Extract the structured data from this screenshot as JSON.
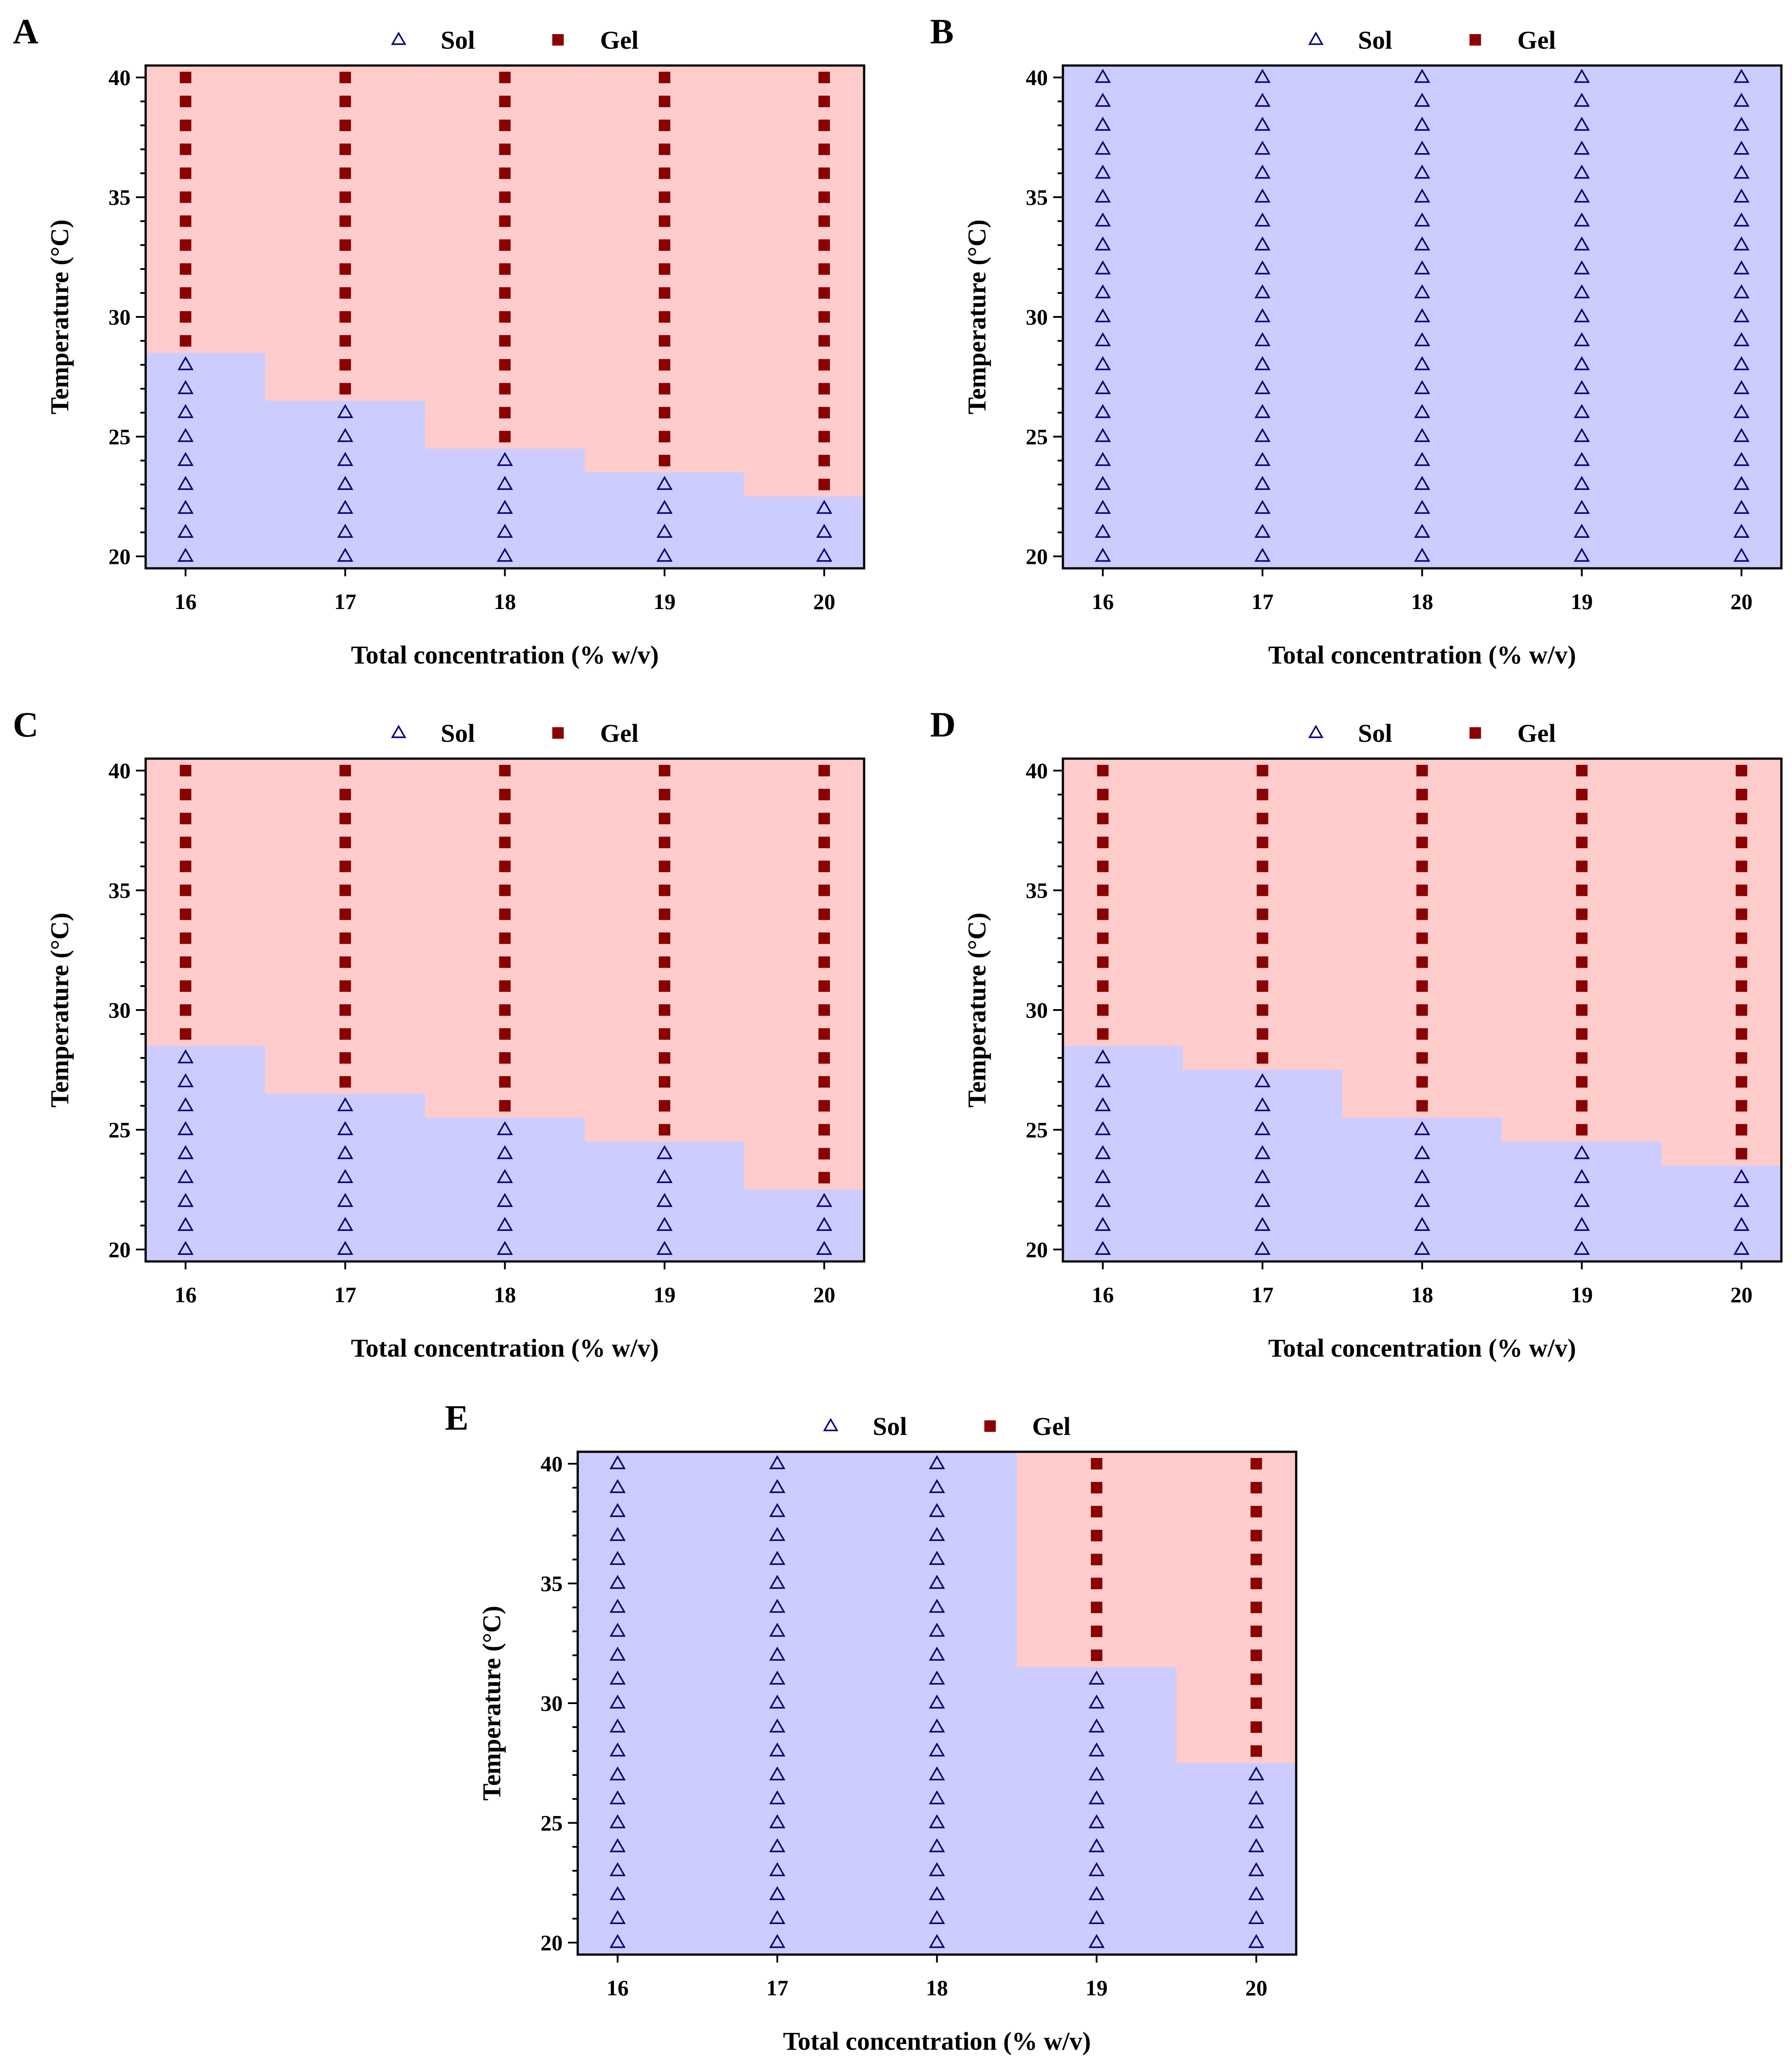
{
  "colors": {
    "sol_region": "#ccccfe",
    "gel_region": "#ffcccc",
    "sol_marker": "#000080",
    "gel_marker": "#8b0000",
    "axis": "#000000"
  },
  "legend": {
    "sol_label": "Sol",
    "gel_label": "Gel",
    "sol_marker": "open-triangle",
    "gel_marker": "filled-square"
  },
  "chart_data": [
    {
      "type": "scatter",
      "panel": "A",
      "xlabel": "Total concentration (% w/v)",
      "ylabel": "Temperature (°C)",
      "x": [
        16,
        17,
        18,
        19,
        20
      ],
      "x_ticks": [
        "16",
        "17",
        "18",
        "19",
        "20"
      ],
      "y_ticks": [
        "20",
        "25",
        "30",
        "35",
        "40"
      ],
      "xlim": [
        15.75,
        20.25
      ],
      "ylim": [
        19.5,
        40.5
      ],
      "y_step": 1,
      "series": [
        {
          "name": "Sol",
          "description": "temperatures 20 °C up to (gelation temperature − 1)"
        },
        {
          "name": "Gel",
          "description": "temperatures from gelation temperature up to 40 °C"
        }
      ],
      "gelation_temperature": [
        29,
        27,
        25,
        24,
        23
      ]
    },
    {
      "type": "scatter",
      "panel": "B",
      "xlabel": "Total concentration (% w/v)",
      "ylabel": "Temperature (°C)",
      "x": [
        16,
        17,
        18,
        19,
        20
      ],
      "x_ticks": [
        "16",
        "17",
        "18",
        "19",
        "20"
      ],
      "y_ticks": [
        "20",
        "25",
        "30",
        "35",
        "40"
      ],
      "xlim": [
        15.75,
        20.25
      ],
      "ylim": [
        19.5,
        40.5
      ],
      "y_step": 1,
      "series": [
        {
          "name": "Sol",
          "description": "all temperatures 20–40 °C"
        },
        {
          "name": "Gel",
          "description": "none"
        }
      ],
      "gelation_temperature": [
        null,
        null,
        null,
        null,
        null
      ]
    },
    {
      "type": "scatter",
      "panel": "C",
      "xlabel": "Total concentration (% w/v)",
      "ylabel": "Temperature (°C)",
      "x": [
        16,
        17,
        18,
        19,
        20
      ],
      "x_ticks": [
        "16",
        "17",
        "18",
        "19",
        "20"
      ],
      "y_ticks": [
        "20",
        "25",
        "30",
        "35",
        "40"
      ],
      "xlim": [
        15.75,
        20.25
      ],
      "ylim": [
        19.5,
        40.5
      ],
      "y_step": 1,
      "series": [
        {
          "name": "Sol",
          "description": "temperatures 20 °C up to (gelation temperature − 1)"
        },
        {
          "name": "Gel",
          "description": "temperatures from gelation temperature up to 40 °C"
        }
      ],
      "gelation_temperature": [
        29,
        27,
        26,
        25,
        23
      ]
    },
    {
      "type": "scatter",
      "panel": "D",
      "xlabel": "Total concentration (% w/v)",
      "ylabel": "Temperature (°C)",
      "x": [
        16,
        17,
        18,
        19,
        20
      ],
      "x_ticks": [
        "16",
        "17",
        "18",
        "19",
        "20"
      ],
      "y_ticks": [
        "20",
        "25",
        "30",
        "35",
        "40"
      ],
      "xlim": [
        15.75,
        20.25
      ],
      "ylim": [
        19.5,
        40.5
      ],
      "y_step": 1,
      "series": [
        {
          "name": "Sol",
          "description": "temperatures 20 °C up to (gelation temperature − 1)"
        },
        {
          "name": "Gel",
          "description": "temperatures from gelation temperature up to 40 °C"
        }
      ],
      "gelation_temperature": [
        29,
        28,
        26,
        25,
        24
      ]
    },
    {
      "type": "scatter",
      "panel": "E",
      "xlabel": "Total concentration (% w/v)",
      "ylabel": "Temperature (°C)",
      "x": [
        16,
        17,
        18,
        19,
        20
      ],
      "x_ticks": [
        "16",
        "17",
        "18",
        "19",
        "20"
      ],
      "y_ticks": [
        "20",
        "25",
        "30",
        "35",
        "40"
      ],
      "xlim": [
        15.75,
        20.25
      ],
      "ylim": [
        19.5,
        40.5
      ],
      "y_step": 1,
      "series": [
        {
          "name": "Sol",
          "description": "temperatures 20 °C up to (gelation temperature − 1)"
        },
        {
          "name": "Gel",
          "description": "temperatures from gelation temperature up to 40 °C"
        }
      ],
      "gelation_temperature": [
        null,
        null,
        null,
        32,
        28
      ]
    }
  ]
}
